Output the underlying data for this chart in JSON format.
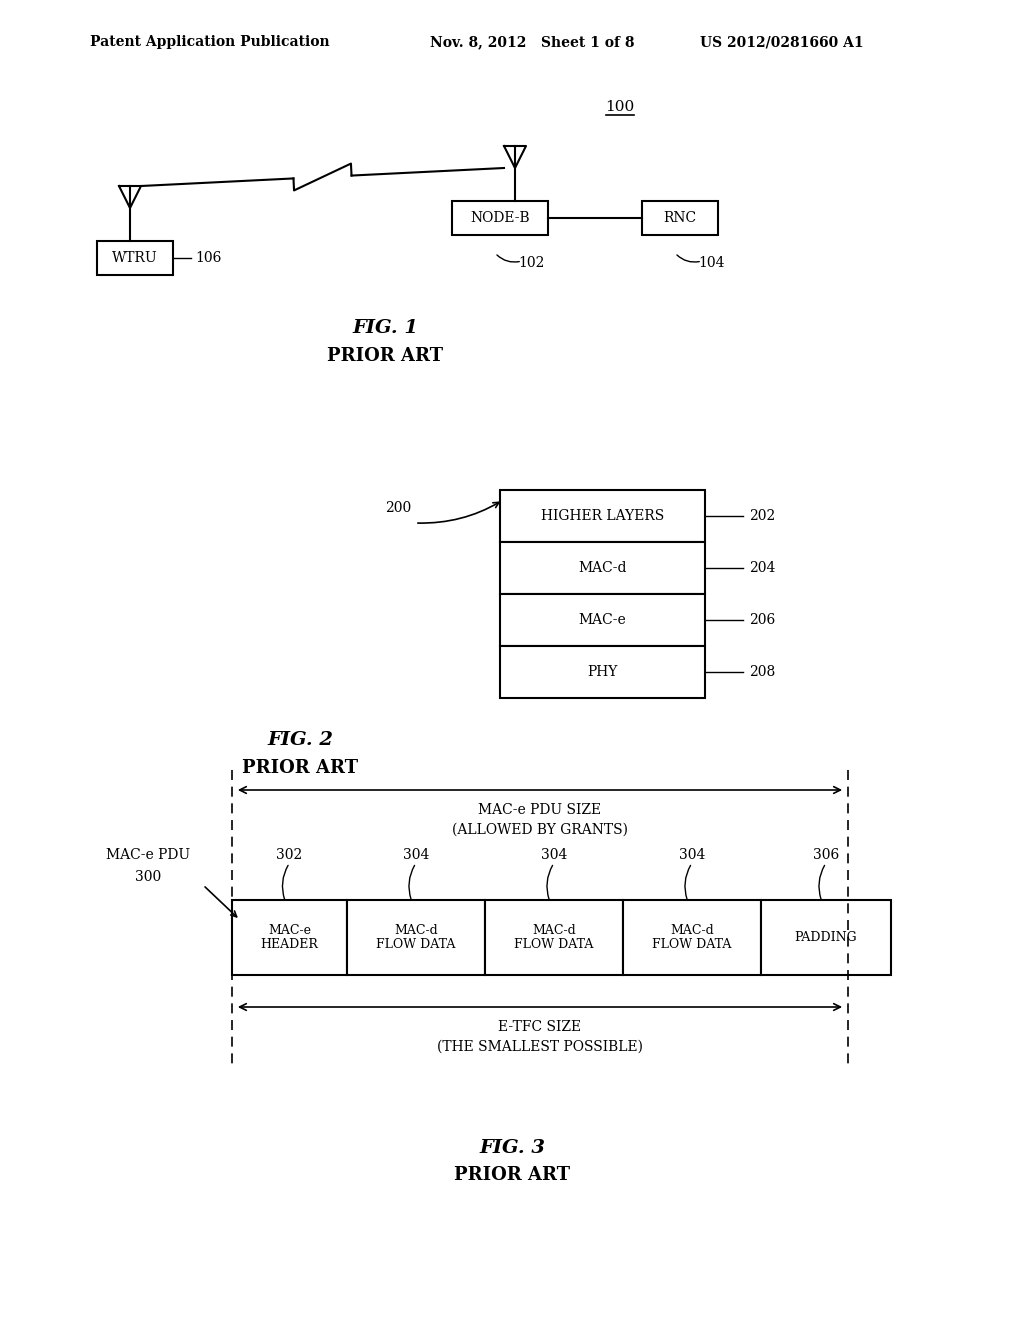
{
  "bg_color": "#ffffff",
  "header_left": "Patent Application Publication",
  "header_mid": "Nov. 8, 2012   Sheet 1 of 8",
  "header_right": "US 2012/0281660 A1",
  "fig1": {
    "title": "FIG. 1",
    "subtitle": "PRIOR ART",
    "label_100": "100",
    "wtru_label": "WTRU",
    "wtru_ref": "106",
    "nodeb_label": "NODE-B",
    "nodeb_ref": "102",
    "rnc_label": "RNC",
    "rnc_ref": "104"
  },
  "fig2": {
    "title": "FIG. 2",
    "subtitle": "PRIOR ART",
    "label_200": "200",
    "layers": [
      "HIGHER LAYERS",
      "MAC-d",
      "MAC-e",
      "PHY"
    ],
    "layer_refs": [
      "202",
      "204",
      "206",
      "208"
    ]
  },
  "fig3": {
    "title": "FIG. 3",
    "subtitle": "PRIOR ART",
    "label_300": "300",
    "mac_pdu_label": "MAC-e PDU",
    "pdu_size_label": "MAC-e PDU SIZE",
    "pdu_size_sub": "(ALLOWED BY GRANTS)",
    "etfc_size_label": "E-TFC SIZE",
    "etfc_size_sub": "(THE SMALLEST POSSIBLE)",
    "cells": [
      {
        "label": "MAC-e\nHEADER",
        "ref": "302"
      },
      {
        "label": "MAC-d\nFLOW DATA",
        "ref": "304"
      },
      {
        "label": "MAC-d\nFLOW DATA",
        "ref": "304"
      },
      {
        "label": "MAC-d\nFLOW DATA",
        "ref": "304"
      },
      {
        "label": "PADDING",
        "ref": "306"
      }
    ],
    "cell_widths": [
      115,
      138,
      138,
      138,
      130
    ]
  }
}
